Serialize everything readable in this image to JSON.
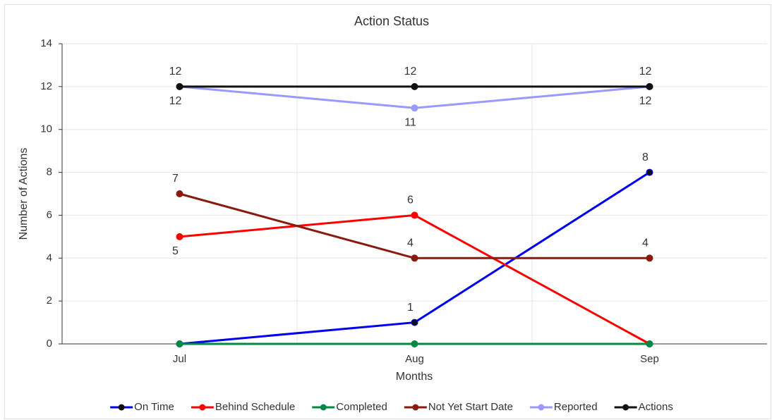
{
  "chart_data": {
    "type": "line",
    "title": "Action Status",
    "x_label": "Months",
    "y_label": "Number of Actions",
    "categories": [
      "Jul",
      "Aug",
      "Sep"
    ],
    "ylim": [
      0,
      14
    ],
    "yticks": [
      0,
      2,
      4,
      6,
      8,
      10,
      12,
      14
    ],
    "grid": true,
    "legend": "bottom",
    "series": [
      {
        "name": "On Time",
        "color": "#0000ee",
        "values": [
          0,
          1,
          8
        ],
        "value_labels": [
          null,
          "1",
          "8"
        ]
      },
      {
        "name": "Behind Schedule",
        "color": "#ff0000",
        "values": [
          5,
          6,
          0
        ],
        "value_labels": [
          "5",
          "6",
          null
        ]
      },
      {
        "name": "Completed",
        "color": "#008844",
        "values": [
          0,
          0,
          0
        ],
        "value_labels": [
          null,
          null,
          null
        ]
      },
      {
        "name": "Not Yet Start Date",
        "color": "#8b1a0e",
        "values": [
          7,
          4,
          4
        ],
        "value_labels": [
          "7",
          "4",
          "4"
        ]
      },
      {
        "name": "Reported",
        "color": "#9999ff",
        "values": [
          12,
          11,
          12
        ],
        "value_labels": [
          "12",
          "11",
          "12"
        ]
      },
      {
        "name": "Actions",
        "color": "#111111",
        "values": [
          12,
          12,
          12
        ],
        "value_labels": [
          "12",
          "12",
          "12"
        ]
      }
    ]
  }
}
